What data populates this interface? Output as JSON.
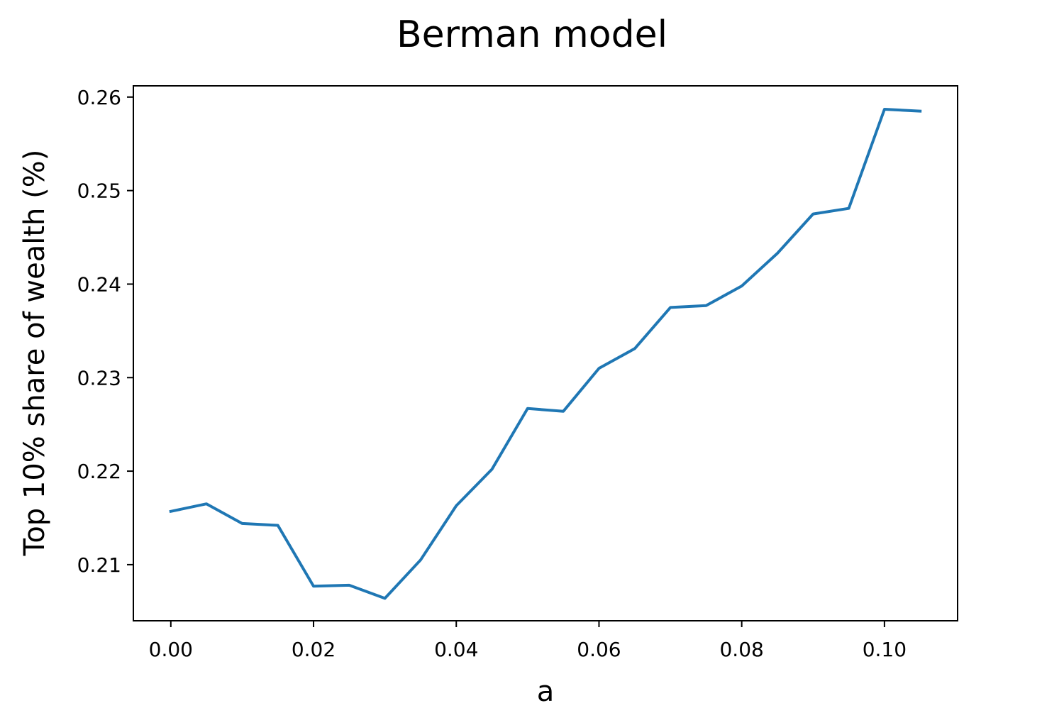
{
  "chart_data": {
    "type": "line",
    "title": "Berman model",
    "xlabel": "a",
    "ylabel": "Top 10% share of wealth (%)",
    "xlim": [
      -0.00525,
      0.11025
    ],
    "ylim": [
      0.204,
      0.2612
    ],
    "xticks": [
      0.0,
      0.02,
      0.04,
      0.06,
      0.08,
      0.1
    ],
    "xtick_labels": [
      "0.00",
      "0.02",
      "0.04",
      "0.06",
      "0.08",
      "0.10"
    ],
    "yticks": [
      0.21,
      0.22,
      0.23,
      0.24,
      0.25,
      0.26
    ],
    "ytick_labels": [
      "0.21",
      "0.22",
      "0.23",
      "0.24",
      "0.25",
      "0.26"
    ],
    "grid": false,
    "series": [
      {
        "color": "#1f77b4",
        "x": [
          0.0,
          0.005,
          0.01,
          0.015,
          0.02,
          0.025,
          0.03,
          0.035,
          0.04,
          0.045,
          0.05,
          0.055,
          0.06,
          0.065,
          0.07,
          0.075,
          0.08,
          0.085,
          0.09,
          0.095,
          0.1,
          0.105
        ],
        "y": [
          0.2157,
          0.2165,
          0.2144,
          0.2142,
          0.2077,
          0.2078,
          0.2064,
          0.2105,
          0.2163,
          0.2202,
          0.2267,
          0.2264,
          0.231,
          0.2331,
          0.2375,
          0.2377,
          0.2398,
          0.2433,
          0.2475,
          0.2481,
          0.2587,
          0.2585
        ]
      }
    ]
  }
}
